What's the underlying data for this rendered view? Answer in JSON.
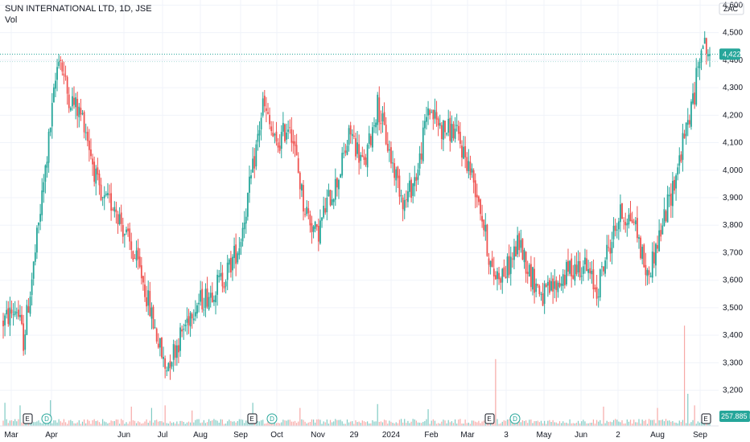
{
  "header": {
    "title": "SUN INTERNATIONAL LTD, 1D, JSE",
    "volume_label": "Vol"
  },
  "colors": {
    "up": "#26a69a",
    "down": "#ef5350",
    "up_volume": "#80cbc4",
    "down_volume": "#f7a9a7",
    "grid": "#f0f3fa",
    "price_line": "#26a69a",
    "axis_text": "#131722"
  },
  "chart_data": {
    "type": "candlestick",
    "title": "SUN INTERNATIONAL LTD, 1D, JSE",
    "currency": "ZAC",
    "y_ticks": [
      3200,
      3300,
      3400,
      3500,
      3600,
      3700,
      3800,
      3900,
      4000,
      4100,
      4200,
      4300,
      4400,
      4500,
      4600
    ],
    "y_tick_labels": [
      "3,200",
      "3,300",
      "3,400",
      "3,500",
      "3,600",
      "3,700",
      "3,800",
      "3,900",
      "4,000",
      "4,100",
      "4,200",
      "4,300",
      "4,400",
      "4,500",
      "4,600"
    ],
    "ylim": [
      3155,
      4610
    ],
    "x_tick_labels": [
      "Mar",
      "Apr",
      "Jun",
      "Jul",
      "Aug",
      "Sep",
      "Oct",
      "Nov",
      "29",
      "2024",
      "Feb",
      "Mar",
      "3",
      "May",
      "Jun",
      "2",
      "Aug",
      "Sep"
    ],
    "last_price": 4422,
    "last_price_label": "4,422",
    "volume_label": "257.885 K",
    "grid": true,
    "anchors": [
      {
        "t": 0,
        "p": 3450
      },
      {
        "t": 8,
        "p": 3500
      },
      {
        "t": 12,
        "p": 3380
      },
      {
        "t": 18,
        "p": 3650
      },
      {
        "t": 25,
        "p": 4000
      },
      {
        "t": 33,
        "p": 4430
      },
      {
        "t": 38,
        "p": 4280
      },
      {
        "t": 48,
        "p": 4180
      },
      {
        "t": 58,
        "p": 3880
      },
      {
        "t": 66,
        "p": 3880
      },
      {
        "t": 74,
        "p": 3740
      },
      {
        "t": 82,
        "p": 3620
      },
      {
        "t": 88,
        "p": 3470
      },
      {
        "t": 96,
        "p": 3280
      },
      {
        "t": 104,
        "p": 3380
      },
      {
        "t": 112,
        "p": 3500
      },
      {
        "t": 122,
        "p": 3550
      },
      {
        "t": 132,
        "p": 3620
      },
      {
        "t": 140,
        "p": 3730
      },
      {
        "t": 148,
        "p": 4000
      },
      {
        "t": 154,
        "p": 4240
      },
      {
        "t": 162,
        "p": 4080
      },
      {
        "t": 170,
        "p": 4180
      },
      {
        "t": 178,
        "p": 3880
      },
      {
        "t": 186,
        "p": 3760
      },
      {
        "t": 192,
        "p": 3880
      },
      {
        "t": 198,
        "p": 3960
      },
      {
        "t": 206,
        "p": 4140
      },
      {
        "t": 214,
        "p": 4010
      },
      {
        "t": 222,
        "p": 4240
      },
      {
        "t": 230,
        "p": 4040
      },
      {
        "t": 238,
        "p": 3880
      },
      {
        "t": 246,
        "p": 4000
      },
      {
        "t": 252,
        "p": 4230
      },
      {
        "t": 260,
        "p": 4150
      },
      {
        "t": 268,
        "p": 4140
      },
      {
        "t": 276,
        "p": 4020
      },
      {
        "t": 282,
        "p": 3900
      },
      {
        "t": 290,
        "p": 3620
      },
      {
        "t": 298,
        "p": 3630
      },
      {
        "t": 306,
        "p": 3740
      },
      {
        "t": 312,
        "p": 3630
      },
      {
        "t": 320,
        "p": 3540
      },
      {
        "t": 328,
        "p": 3580
      },
      {
        "t": 336,
        "p": 3640
      },
      {
        "t": 344,
        "p": 3660
      },
      {
        "t": 352,
        "p": 3560
      },
      {
        "t": 358,
        "p": 3700
      },
      {
        "t": 366,
        "p": 3840
      },
      {
        "t": 374,
        "p": 3820
      },
      {
        "t": 382,
        "p": 3610
      },
      {
        "t": 390,
        "p": 3780
      },
      {
        "t": 398,
        "p": 3960
      },
      {
        "t": 404,
        "p": 4120
      },
      {
        "t": 410,
        "p": 4280
      },
      {
        "t": 414,
        "p": 4480
      },
      {
        "t": 418,
        "p": 4422
      }
    ],
    "big_volume_days": [
      {
        "t": 1,
        "v": 180
      },
      {
        "t": 10,
        "v": 160
      },
      {
        "t": 28,
        "v": 200
      },
      {
        "t": 76,
        "v": 150
      },
      {
        "t": 88,
        "v": 140
      },
      {
        "t": 96,
        "v": 160
      },
      {
        "t": 112,
        "v": 120
      },
      {
        "t": 148,
        "v": 180
      },
      {
        "t": 176,
        "v": 140
      },
      {
        "t": 222,
        "v": 170
      },
      {
        "t": 252,
        "v": 130
      },
      {
        "t": 292,
        "v": 520
      },
      {
        "t": 356,
        "v": 150
      },
      {
        "t": 388,
        "v": 140
      },
      {
        "t": 404,
        "v": 780
      },
      {
        "t": 406,
        "v": 250
      },
      {
        "t": 410,
        "v": 160
      }
    ]
  },
  "events": [
    {
      "type": "E",
      "label": "E",
      "x_label_index": 0
    },
    {
      "type": "D",
      "label": "D",
      "x_label_index": 1
    },
    {
      "type": "E",
      "label": "E",
      "x_label_index": 2
    },
    {
      "type": "D",
      "label": "D",
      "x_label_index": 3
    },
    {
      "type": "E",
      "label": "E",
      "x_label_index": 4
    },
    {
      "type": "D",
      "label": "D",
      "x_label_index": 5
    },
    {
      "type": "E",
      "label": "E",
      "x_label_index": 6
    }
  ]
}
